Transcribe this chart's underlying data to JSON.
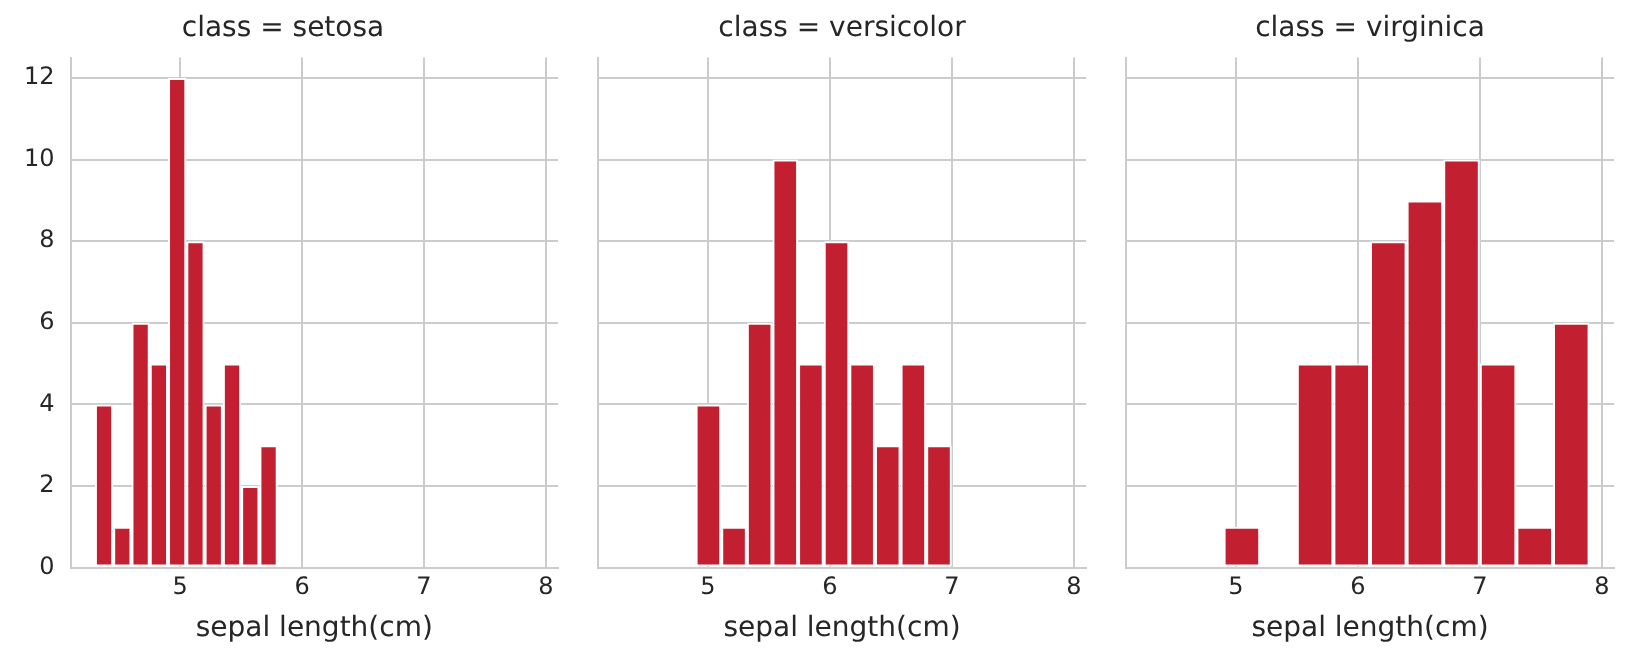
{
  "chart_data": [
    {
      "type": "histogram",
      "title": "class = setosa",
      "xlabel": "sepal length(cm)",
      "color": "#c21f30",
      "bins": [
        4.3,
        4.45,
        4.6,
        4.75,
        4.9,
        5.05,
        5.2,
        5.35,
        5.5,
        5.65,
        5.8
      ],
      "values": [
        4,
        1,
        6,
        5,
        12,
        8,
        4,
        5,
        2,
        3
      ],
      "xlim": [
        4.1,
        8.1
      ],
      "xticks": [
        5,
        6,
        7,
        8
      ],
      "ylim": [
        0,
        12.5
      ],
      "yticks": [
        0,
        2,
        4,
        6,
        8,
        10,
        12
      ],
      "grid": true
    },
    {
      "type": "histogram",
      "title": "class = versicolor",
      "xlabel": "sepal length(cm)",
      "color": "#c21f30",
      "bins": [
        4.9,
        5.11,
        5.32,
        5.53,
        5.74,
        5.95,
        6.16,
        6.37,
        6.58,
        6.79,
        7.0
      ],
      "values": [
        4,
        1,
        6,
        10,
        5,
        8,
        5,
        3,
        5,
        3
      ],
      "xlim": [
        4.1,
        8.1
      ],
      "xticks": [
        5,
        6,
        7,
        8
      ],
      "ylim": [
        0,
        12.5
      ],
      "yticks": [
        0,
        2,
        4,
        6,
        8,
        10,
        12
      ],
      "grid": true,
      "tick_labels": "x"
    },
    {
      "type": "histogram",
      "title": "class = virginica",
      "xlabel": "sepal length(cm)",
      "color": "#c21f30",
      "bins": [
        4.9,
        5.2,
        5.5,
        5.8,
        6.1,
        6.4,
        6.7,
        7.0,
        7.3,
        7.6,
        7.9
      ],
      "values": [
        1,
        0,
        5,
        5,
        8,
        9,
        10,
        5,
        1,
        6
      ],
      "xlim": [
        4.1,
        8.1
      ],
      "xticks": [
        5,
        6,
        7,
        8
      ],
      "ylim": [
        0,
        12.5
      ],
      "yticks": [
        0,
        2,
        4,
        6,
        8,
        10,
        12
      ],
      "grid": true,
      "tick_labels": "x"
    }
  ]
}
